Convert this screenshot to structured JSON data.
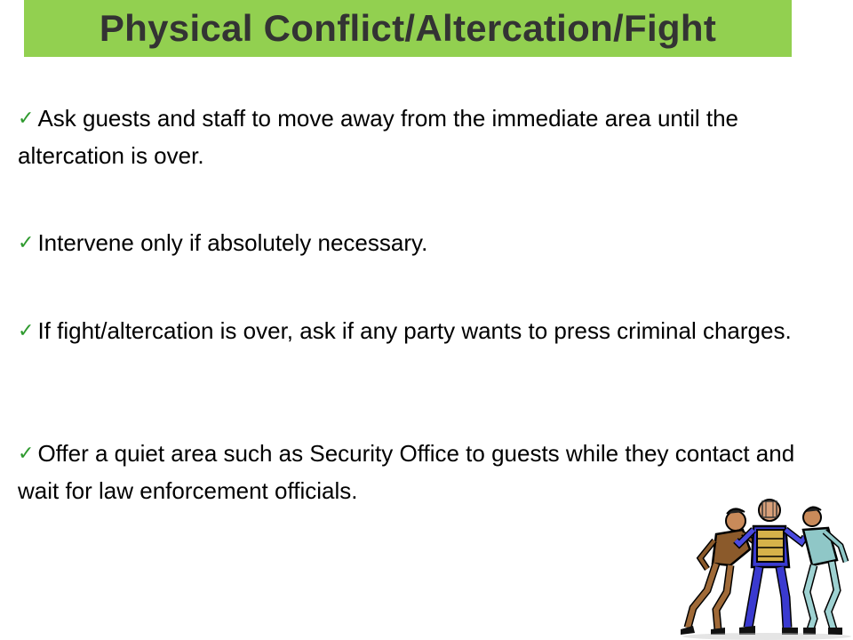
{
  "slide": {
    "title": "Physical Conflict/Altercation/Fight",
    "colors": {
      "title_bar": "#92d050",
      "title_text": "#333333",
      "check": "#2e9a2e"
    },
    "bullet_icon": "check-mark-icon",
    "bullets": [
      "Ask guests and staff to move away from the immediate area until the altercation is over.",
      "Intervene only if absolutely necessary.",
      "If fight/altercation is over, ask if any party wants to press criminal charges.",
      "Offer a quiet area such as Security Office to guests while they contact and wait for law enforcement officials."
    ],
    "clipart": "security-guard-separating-fight-illustration"
  }
}
